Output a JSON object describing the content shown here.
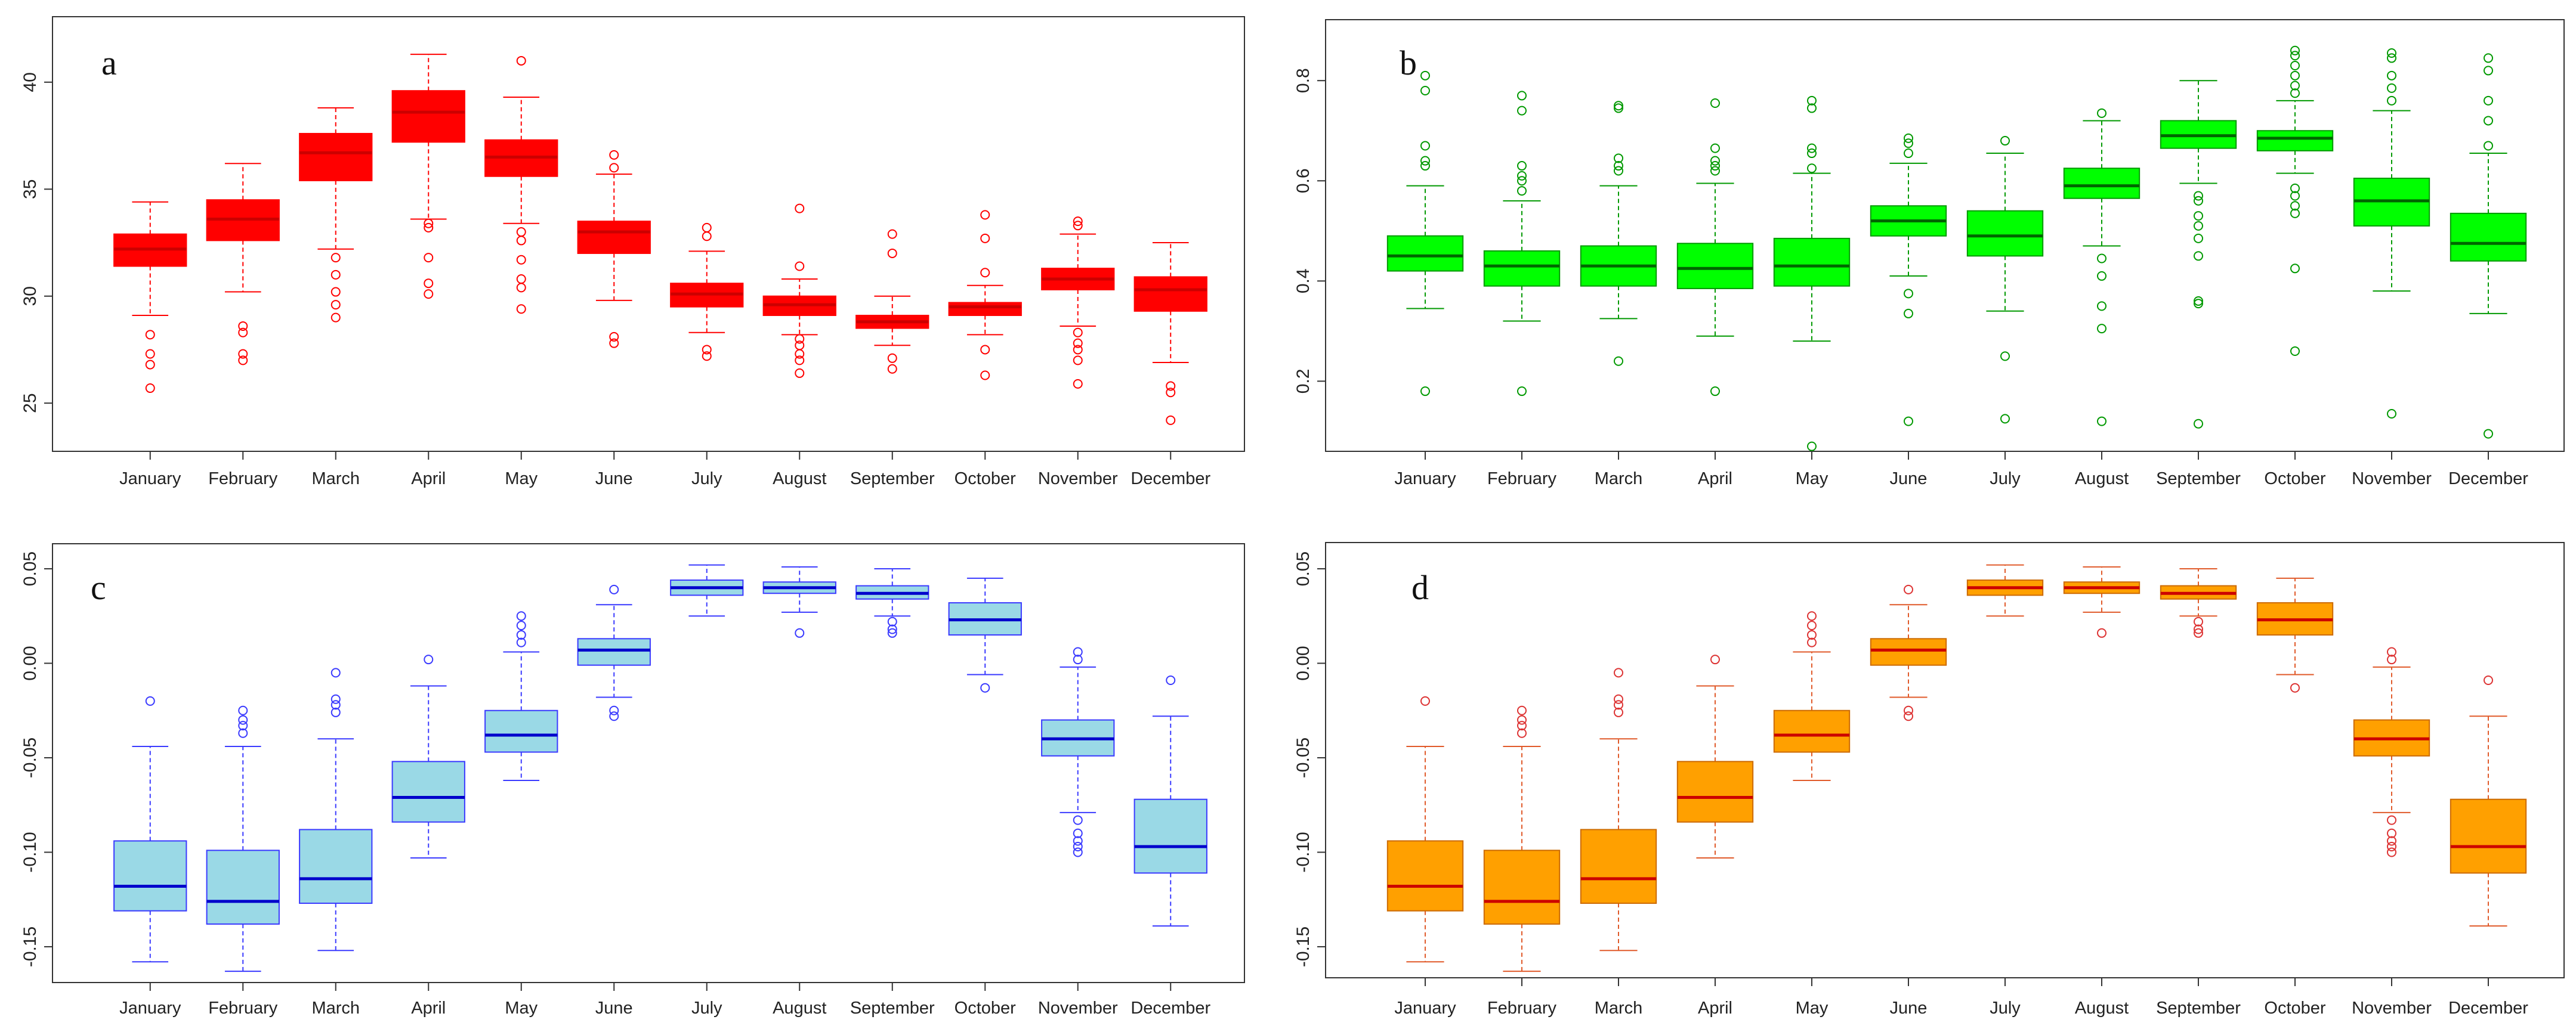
{
  "figure": {
    "background": "#ffffff",
    "axis_color": "#333333"
  },
  "chart_data": [
    {
      "panel": "a",
      "type": "box",
      "categories": [
        "January",
        "February",
        "March",
        "April",
        "May",
        "June",
        "July",
        "August",
        "September",
        "October",
        "November",
        "December"
      ],
      "yticks": [
        "25",
        "30",
        "35",
        "40"
      ],
      "ylim": [
        23.5,
        41.5
      ],
      "colors": {
        "fill": "#ff0000",
        "border": "#ff0000",
        "median": "#cc0000",
        "whisker": "#ff0000",
        "outlier": "#ff0000"
      },
      "boxes": [
        {
          "q1": 31.4,
          "median": 32.2,
          "q3": 32.9,
          "whisker_low": 29.1,
          "whisker_high": 34.4,
          "outliers": [
            25.7,
            26.8,
            27.3,
            28.2
          ]
        },
        {
          "q1": 32.6,
          "median": 33.6,
          "q3": 34.5,
          "whisker_low": 30.2,
          "whisker_high": 36.2,
          "outliers": [
            27.0,
            27.3,
            28.3,
            28.6
          ]
        },
        {
          "q1": 35.4,
          "median": 36.7,
          "q3": 37.6,
          "whisker_low": 32.2,
          "whisker_high": 38.8,
          "outliers": [
            29.0,
            29.6,
            30.2,
            31.0,
            31.8
          ]
        },
        {
          "q1": 37.2,
          "median": 38.6,
          "q3": 39.6,
          "whisker_low": 33.6,
          "whisker_high": 41.3,
          "outliers": [
            30.1,
            30.6,
            31.8,
            33.2,
            33.4
          ]
        },
        {
          "q1": 35.6,
          "median": 36.5,
          "q3": 37.3,
          "whisker_low": 33.4,
          "whisker_high": 39.3,
          "outliers": [
            29.4,
            30.4,
            30.8,
            31.7,
            32.6,
            33.0,
            41.0
          ]
        },
        {
          "q1": 32.0,
          "median": 33.0,
          "q3": 33.5,
          "whisker_low": 29.8,
          "whisker_high": 35.7,
          "outliers": [
            27.8,
            28.1,
            36.0,
            36.6
          ]
        },
        {
          "q1": 29.5,
          "median": 30.1,
          "q3": 30.6,
          "whisker_low": 28.3,
          "whisker_high": 32.1,
          "outliers": [
            27.2,
            27.5,
            32.8,
            33.2
          ]
        },
        {
          "q1": 29.1,
          "median": 29.6,
          "q3": 30.0,
          "whisker_low": 28.2,
          "whisker_high": 30.8,
          "outliers": [
            26.4,
            27.0,
            27.3,
            27.7,
            28.0,
            31.4,
            34.1
          ]
        },
        {
          "q1": 28.5,
          "median": 28.8,
          "q3": 29.1,
          "whisker_low": 27.7,
          "whisker_high": 30.0,
          "outliers": [
            26.6,
            27.1,
            32.0,
            32.9
          ]
        },
        {
          "q1": 29.1,
          "median": 29.5,
          "q3": 29.7,
          "whisker_low": 28.2,
          "whisker_high": 30.5,
          "outliers": [
            26.3,
            27.5,
            31.1,
            32.7,
            33.8
          ]
        },
        {
          "q1": 30.3,
          "median": 30.8,
          "q3": 31.3,
          "whisker_low": 28.6,
          "whisker_high": 32.9,
          "outliers": [
            25.9,
            27.0,
            27.5,
            27.8,
            28.3,
            33.3,
            33.5
          ]
        },
        {
          "q1": 29.3,
          "median": 30.3,
          "q3": 30.9,
          "whisker_low": 26.9,
          "whisker_high": 32.5,
          "outliers": [
            24.2,
            25.5,
            25.8
          ]
        }
      ]
    },
    {
      "panel": "b",
      "type": "box",
      "categories": [
        "January",
        "February",
        "March",
        "April",
        "May",
        "June",
        "July",
        "August",
        "September",
        "October",
        "November",
        "December"
      ],
      "yticks": [
        "0.2",
        "0.4",
        "0.6",
        "0.8"
      ],
      "ylim": [
        0.06,
        0.88
      ],
      "colors": {
        "fill": "#00ff00",
        "border": "#009900",
        "median": "#006600",
        "whisker": "#009900",
        "outlier": "#009900"
      },
      "boxes": [
        {
          "q1": 0.42,
          "median": 0.45,
          "q3": 0.49,
          "whisker_low": 0.345,
          "whisker_high": 0.59,
          "outliers": [
            0.18,
            0.63,
            0.64,
            0.67,
            0.78,
            0.81
          ]
        },
        {
          "q1": 0.39,
          "median": 0.43,
          "q3": 0.46,
          "whisker_low": 0.32,
          "whisker_high": 0.56,
          "outliers": [
            0.18,
            0.58,
            0.6,
            0.61,
            0.63,
            0.74,
            0.77
          ]
        },
        {
          "q1": 0.39,
          "median": 0.43,
          "q3": 0.47,
          "whisker_low": 0.325,
          "whisker_high": 0.59,
          "outliers": [
            0.24,
            0.62,
            0.63,
            0.645,
            0.745,
            0.75
          ]
        },
        {
          "q1": 0.385,
          "median": 0.425,
          "q3": 0.475,
          "whisker_low": 0.29,
          "whisker_high": 0.595,
          "outliers": [
            0.18,
            0.62,
            0.63,
            0.64,
            0.665,
            0.755
          ]
        },
        {
          "q1": 0.39,
          "median": 0.43,
          "q3": 0.485,
          "whisker_low": 0.28,
          "whisker_high": 0.615,
          "outliers": [
            0.07,
            0.625,
            0.655,
            0.665,
            0.745,
            0.76
          ]
        },
        {
          "q1": 0.49,
          "median": 0.52,
          "q3": 0.55,
          "whisker_low": 0.41,
          "whisker_high": 0.635,
          "outliers": [
            0.12,
            0.335,
            0.375,
            0.655,
            0.675,
            0.685
          ]
        },
        {
          "q1": 0.45,
          "median": 0.49,
          "q3": 0.54,
          "whisker_low": 0.34,
          "whisker_high": 0.655,
          "outliers": [
            0.125,
            0.25,
            0.68
          ]
        },
        {
          "q1": 0.565,
          "median": 0.59,
          "q3": 0.625,
          "whisker_low": 0.47,
          "whisker_high": 0.72,
          "outliers": [
            0.12,
            0.305,
            0.35,
            0.41,
            0.445,
            0.735
          ]
        },
        {
          "q1": 0.665,
          "median": 0.69,
          "q3": 0.72,
          "whisker_low": 0.595,
          "whisker_high": 0.8,
          "outliers": [
            0.115,
            0.355,
            0.36,
            0.45,
            0.485,
            0.51,
            0.53,
            0.56,
            0.57
          ]
        },
        {
          "q1": 0.66,
          "median": 0.685,
          "q3": 0.7,
          "whisker_low": 0.615,
          "whisker_high": 0.76,
          "outliers": [
            0.26,
            0.425,
            0.535,
            0.55,
            0.57,
            0.585,
            0.775,
            0.79,
            0.81,
            0.83,
            0.85,
            0.86
          ]
        },
        {
          "q1": 0.51,
          "median": 0.56,
          "q3": 0.605,
          "whisker_low": 0.38,
          "whisker_high": 0.74,
          "outliers": [
            0.135,
            0.76,
            0.785,
            0.81,
            0.845,
            0.855
          ]
        },
        {
          "q1": 0.44,
          "median": 0.475,
          "q3": 0.535,
          "whisker_low": 0.335,
          "whisker_high": 0.655,
          "outliers": [
            0.095,
            0.67,
            0.72,
            0.76,
            0.82,
            0.845
          ]
        }
      ]
    },
    {
      "panel": "c",
      "type": "box",
      "categories": [
        "January",
        "February",
        "March",
        "April",
        "May",
        "June",
        "July",
        "August",
        "September",
        "October",
        "November",
        "December"
      ],
      "yticks": [
        "-0.15",
        "-0.10",
        "-0.05",
        "0.00",
        "0.05"
      ],
      "ylim": [
        -0.168,
        0.056
      ],
      "colors": {
        "fill": "#9ad9e6",
        "border": "#3a3aff",
        "median": "#0000cc",
        "whisker": "#3a3aff",
        "outlier": "#3a3aff"
      },
      "boxes": [
        {
          "q1": -0.131,
          "median": -0.118,
          "q3": -0.094,
          "whisker_low": -0.158,
          "whisker_high": -0.044,
          "outliers": [
            -0.02
          ]
        },
        {
          "q1": -0.138,
          "median": -0.126,
          "q3": -0.099,
          "whisker_low": -0.163,
          "whisker_high": -0.044,
          "outliers": [
            -0.025,
            -0.03,
            -0.033,
            -0.037
          ]
        },
        {
          "q1": -0.127,
          "median": -0.114,
          "q3": -0.088,
          "whisker_low": -0.152,
          "whisker_high": -0.04,
          "outliers": [
            -0.005,
            -0.019,
            -0.022,
            -0.026
          ]
        },
        {
          "q1": -0.084,
          "median": -0.071,
          "q3": -0.052,
          "whisker_low": -0.103,
          "whisker_high": -0.012,
          "outliers": [
            0.002
          ]
        },
        {
          "q1": -0.047,
          "median": -0.038,
          "q3": -0.025,
          "whisker_low": -0.062,
          "whisker_high": 0.006,
          "outliers": [
            0.011,
            0.015,
            0.02,
            0.025
          ]
        },
        {
          "q1": -0.001,
          "median": 0.007,
          "q3": 0.013,
          "whisker_low": -0.018,
          "whisker_high": 0.031,
          "outliers": [
            -0.025,
            -0.028,
            0.039
          ]
        },
        {
          "q1": 0.036,
          "median": 0.04,
          "q3": 0.044,
          "whisker_low": 0.025,
          "whisker_high": 0.052,
          "outliers": []
        },
        {
          "q1": 0.037,
          "median": 0.04,
          "q3": 0.043,
          "whisker_low": 0.027,
          "whisker_high": 0.051,
          "outliers": [
            0.016
          ]
        },
        {
          "q1": 0.034,
          "median": 0.037,
          "q3": 0.041,
          "whisker_low": 0.025,
          "whisker_high": 0.05,
          "outliers": [
            0.016,
            0.018,
            0.022
          ]
        },
        {
          "q1": 0.015,
          "median": 0.023,
          "q3": 0.032,
          "whisker_low": -0.006,
          "whisker_high": 0.045,
          "outliers": [
            -0.013
          ]
        },
        {
          "q1": -0.049,
          "median": -0.04,
          "q3": -0.03,
          "whisker_low": -0.079,
          "whisker_high": -0.002,
          "outliers": [
            -0.1,
            -0.097,
            -0.094,
            -0.09,
            -0.083,
            0.002,
            0.006
          ]
        },
        {
          "q1": -0.111,
          "median": -0.097,
          "q3": -0.072,
          "whisker_low": -0.139,
          "whisker_high": -0.028,
          "outliers": [
            -0.009
          ]
        }
      ]
    },
    {
      "panel": "d",
      "type": "box",
      "categories": [
        "January",
        "February",
        "March",
        "April",
        "May",
        "June",
        "July",
        "August",
        "September",
        "October",
        "November",
        "December"
      ],
      "yticks": [
        "-0.15",
        "-0.10",
        "-0.05",
        "0.00",
        "0.05"
      ],
      "ylim": [
        -0.168,
        0.056
      ],
      "colors": {
        "fill": "#ffa000",
        "border": "#cc6a00",
        "median": "#cc0000",
        "whisker": "#e05a2a",
        "outlier": "#dd3333"
      },
      "boxes": [
        {
          "q1": -0.131,
          "median": -0.118,
          "q3": -0.094,
          "whisker_low": -0.158,
          "whisker_high": -0.044,
          "outliers": [
            -0.02
          ]
        },
        {
          "q1": -0.138,
          "median": -0.126,
          "q3": -0.099,
          "whisker_low": -0.163,
          "whisker_high": -0.044,
          "outliers": [
            -0.025,
            -0.03,
            -0.033,
            -0.037
          ]
        },
        {
          "q1": -0.127,
          "median": -0.114,
          "q3": -0.088,
          "whisker_low": -0.152,
          "whisker_high": -0.04,
          "outliers": [
            -0.005,
            -0.019,
            -0.022,
            -0.026
          ]
        },
        {
          "q1": -0.084,
          "median": -0.071,
          "q3": -0.052,
          "whisker_low": -0.103,
          "whisker_high": -0.012,
          "outliers": [
            0.002
          ]
        },
        {
          "q1": -0.047,
          "median": -0.038,
          "q3": -0.025,
          "whisker_low": -0.062,
          "whisker_high": 0.006,
          "outliers": [
            0.011,
            0.015,
            0.02,
            0.025
          ]
        },
        {
          "q1": -0.001,
          "median": 0.007,
          "q3": 0.013,
          "whisker_low": -0.018,
          "whisker_high": 0.031,
          "outliers": [
            -0.025,
            -0.028,
            0.039
          ]
        },
        {
          "q1": 0.036,
          "median": 0.04,
          "q3": 0.044,
          "whisker_low": 0.025,
          "whisker_high": 0.052,
          "outliers": []
        },
        {
          "q1": 0.037,
          "median": 0.04,
          "q3": 0.043,
          "whisker_low": 0.027,
          "whisker_high": 0.051,
          "outliers": [
            0.016
          ]
        },
        {
          "q1": 0.034,
          "median": 0.037,
          "q3": 0.041,
          "whisker_low": 0.025,
          "whisker_high": 0.05,
          "outliers": [
            0.016,
            0.018,
            0.022
          ]
        },
        {
          "q1": 0.015,
          "median": 0.023,
          "q3": 0.032,
          "whisker_low": -0.006,
          "whisker_high": 0.045,
          "outliers": [
            -0.013
          ]
        },
        {
          "q1": -0.049,
          "median": -0.04,
          "q3": -0.03,
          "whisker_low": -0.079,
          "whisker_high": -0.002,
          "outliers": [
            -0.1,
            -0.097,
            -0.094,
            -0.09,
            -0.083,
            0.002,
            0.006
          ]
        },
        {
          "q1": -0.111,
          "median": -0.097,
          "q3": -0.072,
          "whisker_low": -0.139,
          "whisker_high": -0.028,
          "outliers": [
            -0.009
          ]
        }
      ]
    }
  ]
}
